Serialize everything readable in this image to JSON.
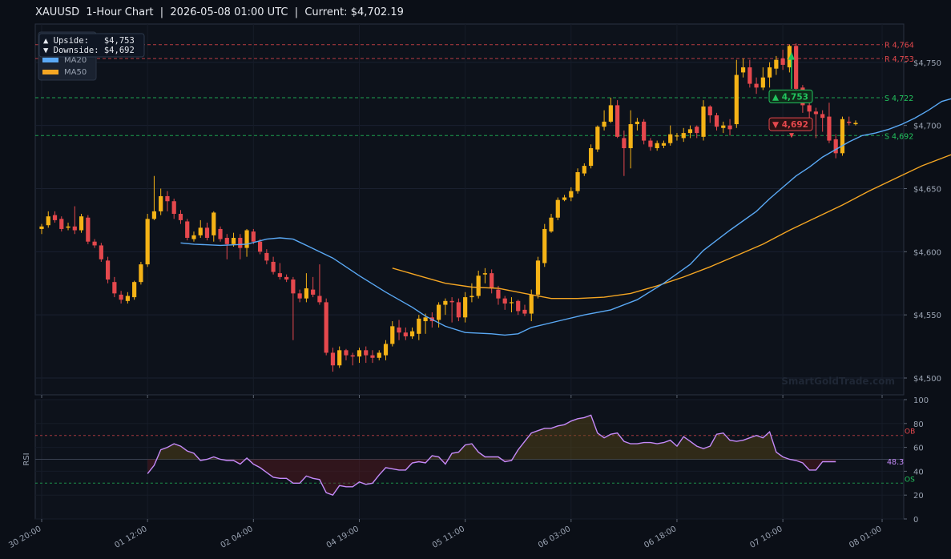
{
  "title": "XAUUSD  1-Hour Chart  |  2026-05-08 01:00 UTC  |  Current: $4,702.19",
  "watermark": "SmartGoldTrade.com",
  "legend": {
    "ma20": "MA20",
    "ma50": "MA50"
  },
  "tooltip": {
    "up": "▲ Upside:   $4,753",
    "down": "▼ Downside: $4,692"
  },
  "levels": {
    "r1": "R 4,764",
    "r2": "R 4,753",
    "s1": "S 4,722",
    "s2": "S 4,692"
  },
  "tags": {
    "up": "▲ 4,753",
    "down": "▼ 4,692"
  },
  "rsi": {
    "label": "RSI",
    "value": "48.3",
    "ob": "OB",
    "os": "OS"
  },
  "colors": {
    "bg": "#0b0f17",
    "up": "#f5b316",
    "down": "#e5484d",
    "ma20": "#5aa9f5",
    "ma50": "#f5a623",
    "rsi": "#c58af9",
    "support": "#22c55e",
    "resist": "#e5484d"
  },
  "chart_data": {
    "type": "candlestick",
    "title": "XAUUSD  1-Hour Chart  |  2026-05-08 01:00 UTC  |  Current: $4,702.19",
    "y_ticks": [
      "$4,500",
      "$4,550",
      "$4,600",
      "$4,650",
      "$4,700",
      "$4,750"
    ],
    "y_values": [
      4500,
      4550,
      4600,
      4650,
      4700,
      4750
    ],
    "ylim": [
      4490,
      4770
    ],
    "x_ticks": [
      "30 20:00",
      "01 12:00",
      "02 04:00",
      "04 19:00",
      "05 11:00",
      "06 03:00",
      "06 18:00",
      "07 10:00",
      "08 01:00"
    ],
    "x_tick_index": [
      0,
      16,
      32,
      48,
      64,
      80,
      96,
      112,
      127
    ],
    "levels": [
      {
        "label": "R 4,764",
        "value": 4764,
        "kind": "resistance"
      },
      {
        "label": "R 4,753",
        "value": 4753,
        "kind": "resistance"
      },
      {
        "label": "S 4,722",
        "value": 4722,
        "kind": "support"
      },
      {
        "label": "S 4,692",
        "value": 4692,
        "kind": "support"
      }
    ],
    "candles": [
      [
        4618,
        4620,
        4614,
        4622
      ],
      [
        4621,
        4628,
        4619,
        4632
      ],
      [
        4629,
        4625,
        4623,
        4632
      ],
      [
        4626,
        4618,
        4616,
        4628
      ],
      [
        4619,
        4620,
        4617,
        4623
      ],
      [
        4620,
        4617,
        4614,
        4636
      ],
      [
        4617,
        4628,
        4615,
        4630
      ],
      [
        4627,
        4608,
        4606,
        4629
      ],
      [
        4608,
        4605,
        4603,
        4610
      ],
      [
        4605,
        4594,
        4592,
        4607
      ],
      [
        4593,
        4578,
        4575,
        4596
      ],
      [
        4576,
        4567,
        4564,
        4580
      ],
      [
        4566,
        4562,
        4559,
        4569
      ],
      [
        4561,
        4565,
        4559,
        4568
      ],
      [
        4564,
        4576,
        4562,
        4577
      ],
      [
        4576,
        4590,
        4574,
        4592
      ],
      [
        4590,
        4626,
        4588,
        4630
      ],
      [
        4626,
        4632,
        4625,
        4660
      ],
      [
        4632,
        4644,
        4629,
        4650
      ],
      [
        4644,
        4640,
        4632,
        4648
      ],
      [
        4640,
        4630,
        4626,
        4642
      ],
      [
        4630,
        4625,
        4622,
        4633
      ],
      [
        4624,
        4611,
        4609,
        4626
      ],
      [
        4610,
        4613,
        4608,
        4616
      ],
      [
        4613,
        4619,
        4611,
        4625
      ],
      [
        4619,
        4611,
        4609,
        4623
      ],
      [
        4613,
        4631,
        4608,
        4632
      ],
      [
        4618,
        4610,
        4608,
        4620
      ],
      [
        4611,
        4606,
        4594,
        4614
      ],
      [
        4606,
        4611,
        4604,
        4615
      ],
      [
        4611,
        4603,
        4594,
        4614
      ],
      [
        4603,
        4617,
        4596,
        4618
      ],
      [
        4616,
        4608,
        4606,
        4618
      ],
      [
        4608,
        4600,
        4598,
        4610
      ],
      [
        4599,
        4593,
        4590,
        4602
      ],
      [
        4592,
        4584,
        4582,
        4596
      ],
      [
        4583,
        4580,
        4578,
        4591
      ],
      [
        4580,
        4578,
        4576,
        4582
      ],
      [
        4578,
        4567,
        4530,
        4580
      ],
      [
        4567,
        4563,
        4560,
        4570
      ],
      [
        4563,
        4571,
        4560,
        4583
      ],
      [
        4570,
        4566,
        4564,
        4580
      ],
      [
        4565,
        4560,
        4558,
        4590
      ],
      [
        4560,
        4520,
        4518,
        4563
      ],
      [
        4520,
        4510,
        4505,
        4524
      ],
      [
        4510,
        4522,
        4508,
        4525
      ],
      [
        4522,
        4518,
        4514,
        4523
      ],
      [
        4518,
        4517,
        4510,
        4520
      ],
      [
        4517,
        4522,
        4512,
        4524
      ],
      [
        4522,
        4518,
        4512,
        4525
      ],
      [
        4518,
        4516,
        4512,
        4522
      ],
      [
        4516,
        4520,
        4514,
        4522
      ],
      [
        4518,
        4527,
        4514,
        4530
      ],
      [
        4527,
        4541,
        4525,
        4545
      ],
      [
        4540,
        4536,
        4530,
        4546
      ],
      [
        4536,
        4533,
        4530,
        4540
      ],
      [
        4533,
        4537,
        4531,
        4540
      ],
      [
        4535,
        4547,
        4530,
        4550
      ],
      [
        4545,
        4548,
        4535,
        4551
      ],
      [
        4548,
        4545,
        4540,
        4552
      ],
      [
        4546,
        4558,
        4540,
        4560
      ],
      [
        4558,
        4561,
        4550,
        4563
      ],
      [
        4561,
        4560,
        4544,
        4564
      ],
      [
        4560,
        4548,
        4545,
        4563
      ],
      [
        4548,
        4564,
        4544,
        4568
      ],
      [
        4564,
        4565,
        4560,
        4575
      ],
      [
        4565,
        4581,
        4563,
        4585
      ],
      [
        4582,
        4583,
        4575,
        4587
      ],
      [
        4583,
        4571,
        4567,
        4586
      ],
      [
        4570,
        4563,
        4558,
        4573
      ],
      [
        4563,
        4559,
        4554,
        4565
      ],
      [
        4560,
        4560,
        4552,
        4564
      ],
      [
        4561,
        4553,
        4550,
        4562
      ],
      [
        4554,
        4551,
        4549,
        4558
      ],
      [
        4551,
        4566,
        4545,
        4570
      ],
      [
        4566,
        4593,
        4563,
        4596
      ],
      [
        4591,
        4618,
        4588,
        4622
      ],
      [
        4616,
        4627,
        4615,
        4630
      ],
      [
        4627,
        4641,
        4625,
        4643
      ],
      [
        4641,
        4643,
        4640,
        4645
      ],
      [
        4643,
        4648,
        4640,
        4651
      ],
      [
        4648,
        4663,
        4646,
        4666
      ],
      [
        4662,
        4668,
        4660,
        4670
      ],
      [
        4668,
        4682,
        4666,
        4685
      ],
      [
        4681,
        4699,
        4679,
        4700
      ],
      [
        4699,
        4703,
        4696,
        4712
      ],
      [
        4703,
        4716,
        4702,
        4722
      ],
      [
        4716,
        4691,
        4690,
        4720
      ],
      [
        4690,
        4682,
        4660,
        4696
      ],
      [
        4682,
        4701,
        4666,
        4712
      ],
      [
        4701,
        4703,
        4696,
        4706
      ],
      [
        4703,
        4688,
        4685,
        4705
      ],
      [
        4688,
        4683,
        4680,
        4690
      ],
      [
        4682,
        4686,
        4680,
        4688
      ],
      [
        4684,
        4686,
        4682,
        4688
      ],
      [
        4686,
        4693,
        4684,
        4700
      ],
      [
        4692,
        4692,
        4688,
        4694
      ],
      [
        4690,
        4694,
        4687,
        4698
      ],
      [
        4694,
        4697,
        4690,
        4700
      ],
      [
        4699,
        4694,
        4690,
        4700
      ],
      [
        4691,
        4715,
        4688,
        4720
      ],
      [
        4715,
        4708,
        4702,
        4716
      ],
      [
        4708,
        4699,
        4696,
        4710
      ],
      [
        4698,
        4700,
        4694,
        4703
      ],
      [
        4700,
        4697,
        4692,
        4705
      ],
      [
        4701,
        4740,
        4698,
        4752
      ],
      [
        4742,
        4746,
        4738,
        4753
      ],
      [
        4746,
        4733,
        4730,
        4752
      ],
      [
        4733,
        4730,
        4725,
        4738
      ],
      [
        4730,
        4738,
        4728,
        4746
      ],
      [
        4738,
        4746,
        4730,
        4750
      ],
      [
        4745,
        4752,
        4740,
        4755
      ],
      [
        4753,
        4748,
        4744,
        4760
      ],
      [
        4746,
        4763,
        4742,
        4764
      ],
      [
        4763,
        4729,
        4725,
        4765
      ],
      [
        4730,
        4716,
        4710,
        4732
      ],
      [
        4716,
        4711,
        4700,
        4718
      ],
      [
        4711,
        4709,
        4690,
        4714
      ],
      [
        4709,
        4706,
        4695,
        4712
      ],
      [
        4707,
        4688,
        4686,
        4718
      ],
      [
        4689,
        4678,
        4674,
        4693
      ],
      [
        4678,
        4705,
        4676,
        4707
      ],
      [
        4703,
        4702,
        4700,
        4707
      ],
      [
        4701,
        4702,
        4700,
        4704
      ]
    ],
    "ma20": [
      [
        21,
        4607
      ],
      [
        23,
        4606
      ],
      [
        27,
        4605
      ],
      [
        31,
        4606
      ],
      [
        34,
        4610
      ],
      [
        36,
        4611
      ],
      [
        38,
        4610
      ],
      [
        40,
        4605
      ],
      [
        44,
        4595
      ],
      [
        48,
        4581
      ],
      [
        52,
        4568
      ],
      [
        56,
        4556
      ],
      [
        58,
        4549
      ],
      [
        61,
        4541
      ],
      [
        64,
        4536
      ],
      [
        68,
        4535
      ],
      [
        70,
        4534
      ],
      [
        72,
        4535
      ],
      [
        74,
        4540
      ],
      [
        78,
        4545
      ],
      [
        82,
        4550
      ],
      [
        86,
        4554
      ],
      [
        90,
        4562
      ],
      [
        94,
        4575
      ],
      [
        98,
        4590
      ],
      [
        100,
        4601
      ],
      [
        104,
        4617
      ],
      [
        108,
        4632
      ],
      [
        110,
        4642
      ],
      [
        112,
        4651
      ],
      [
        114,
        4660
      ],
      [
        116,
        4667
      ],
      [
        118,
        4675
      ],
      [
        120,
        4681
      ],
      [
        122,
        4687
      ],
      [
        124,
        4692
      ],
      [
        126,
        4694
      ],
      [
        128,
        4697
      ],
      [
        130,
        4701
      ],
      [
        132,
        4706
      ],
      [
        134,
        4712
      ],
      [
        136,
        4719
      ],
      [
        138,
        4722
      ],
      [
        140,
        4722
      ],
      [
        141,
        4721
      ],
      [
        143,
        4721
      ]
    ],
    "ma50": [
      [
        53,
        4587
      ],
      [
        57,
        4581
      ],
      [
        61,
        4575
      ],
      [
        65,
        4572
      ],
      [
        69,
        4571
      ],
      [
        73,
        4567
      ],
      [
        77,
        4563
      ],
      [
        81,
        4563
      ],
      [
        85,
        4564
      ],
      [
        89,
        4567
      ],
      [
        93,
        4573
      ],
      [
        97,
        4580
      ],
      [
        101,
        4588
      ],
      [
        105,
        4597
      ],
      [
        109,
        4606
      ],
      [
        113,
        4617
      ],
      [
        117,
        4627
      ],
      [
        121,
        4637
      ],
      [
        125,
        4648
      ],
      [
        129,
        4658
      ],
      [
        133,
        4668
      ],
      [
        137,
        4676
      ],
      [
        141,
        4684
      ],
      [
        143,
        4689
      ]
    ],
    "rsi_ylim": [
      0,
      100
    ],
    "rsi_ticks": [
      0,
      20,
      40,
      60,
      80,
      100
    ],
    "rsi": [
      [
        16,
        38
      ],
      [
        17,
        45
      ],
      [
        18,
        58
      ],
      [
        19,
        60
      ],
      [
        20,
        63
      ],
      [
        21,
        61
      ],
      [
        22,
        57
      ],
      [
        23,
        55
      ],
      [
        24,
        49
      ],
      [
        25,
        50
      ],
      [
        26,
        52
      ],
      [
        27,
        50
      ],
      [
        28,
        49
      ],
      [
        29,
        49
      ],
      [
        30,
        46
      ],
      [
        31,
        51
      ],
      [
        32,
        46
      ],
      [
        33,
        43
      ],
      [
        34,
        39
      ],
      [
        35,
        35
      ],
      [
        36,
        34
      ],
      [
        37,
        34
      ],
      [
        38,
        30
      ],
      [
        39,
        30
      ],
      [
        40,
        36
      ],
      [
        41,
        34
      ],
      [
        42,
        33
      ],
      [
        43,
        22
      ],
      [
        44,
        20
      ],
      [
        45,
        28
      ],
      [
        46,
        27
      ],
      [
        47,
        27
      ],
      [
        48,
        31
      ],
      [
        49,
        29
      ],
      [
        50,
        30
      ],
      [
        51,
        37
      ],
      [
        52,
        43
      ],
      [
        53,
        42
      ],
      [
        54,
        41
      ],
      [
        55,
        41
      ],
      [
        56,
        47
      ],
      [
        57,
        48
      ],
      [
        58,
        47
      ],
      [
        59,
        53
      ],
      [
        60,
        52
      ],
      [
        61,
        46
      ],
      [
        62,
        55
      ],
      [
        63,
        56
      ],
      [
        64,
        62
      ],
      [
        65,
        63
      ],
      [
        66,
        56
      ],
      [
        67,
        52
      ],
      [
        68,
        52
      ],
      [
        69,
        52
      ],
      [
        70,
        48
      ],
      [
        71,
        49
      ],
      [
        72,
        58
      ],
      [
        73,
        65
      ],
      [
        74,
        72
      ],
      [
        75,
        74
      ],
      [
        76,
        76
      ],
      [
        77,
        76
      ],
      [
        78,
        78
      ],
      [
        79,
        79
      ],
      [
        80,
        82
      ],
      [
        81,
        84
      ],
      [
        82,
        85
      ],
      [
        83,
        87
      ],
      [
        84,
        72
      ],
      [
        85,
        68
      ],
      [
        86,
        71
      ],
      [
        87,
        72
      ],
      [
        88,
        65
      ],
      [
        89,
        63
      ],
      [
        90,
        63
      ],
      [
        91,
        64
      ],
      [
        92,
        64
      ],
      [
        93,
        63
      ],
      [
        94,
        64
      ],
      [
        95,
        66
      ],
      [
        96,
        61
      ],
      [
        97,
        69
      ],
      [
        98,
        65
      ],
      [
        99,
        61
      ],
      [
        100,
        59
      ],
      [
        101,
        61
      ],
      [
        102,
        71
      ],
      [
        103,
        72
      ],
      [
        104,
        66
      ],
      [
        105,
        65
      ],
      [
        106,
        66
      ],
      [
        107,
        68
      ],
      [
        108,
        70
      ],
      [
        109,
        68
      ],
      [
        110,
        73
      ],
      [
        111,
        56
      ],
      [
        112,
        52
      ],
      [
        113,
        50
      ],
      [
        114,
        49
      ],
      [
        115,
        47
      ],
      [
        116,
        41
      ],
      [
        117,
        41
      ],
      [
        118,
        48
      ],
      [
        119,
        48
      ],
      [
        120,
        48
      ]
    ],
    "rsi_ob": 70,
    "rsi_os": 30
  }
}
